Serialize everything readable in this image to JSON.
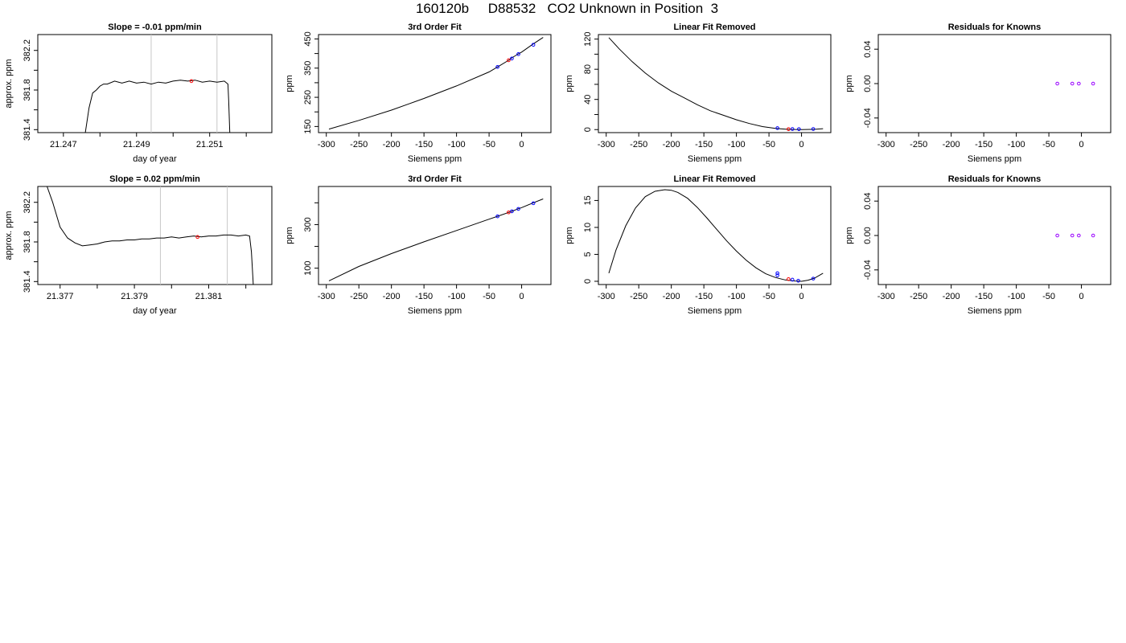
{
  "page_title": "160120b     D88532   CO2 Unknown in Position  3",
  "colors": {
    "axis": "#000000",
    "line": "#000000",
    "vline": "#c8c8c8",
    "known": "#0000ff",
    "unknown": "#ff0000",
    "residual": "#9900ff"
  },
  "chart_data": [
    {
      "type": "line",
      "title": "Slope =  -0.01  ppm/min",
      "xlabel": "day of year",
      "ylabel": "approx. ppm",
      "xlim": [
        21.2463,
        21.2527
      ],
      "ylim": [
        381.37,
        382.36
      ],
      "xticks": [
        21.247,
        21.248,
        21.249,
        21.25,
        21.251,
        21.252
      ],
      "xtick_labels": [
        "21.247",
        "",
        "21.249",
        "",
        "21.251",
        ""
      ],
      "yticks": [
        381.4,
        381.6,
        381.8,
        382.0,
        382.2
      ],
      "ytick_labels": [
        "381.4",
        "",
        "381.8",
        "",
        "382.2"
      ],
      "vlines": [
        21.2494,
        21.2512
      ],
      "series": [
        {
          "x": [
            21.2476,
            21.2477,
            21.2478,
            21.2479,
            21.248,
            21.2481,
            21.2482,
            21.2484,
            21.2486,
            21.2488,
            21.249,
            21.2492,
            21.2494,
            21.2496,
            21.2498,
            21.25,
            21.2502,
            21.2504,
            21.2506,
            21.2508,
            21.251,
            21.2512,
            21.2514,
            21.2515,
            21.25152,
            21.25155
          ],
          "y": [
            381.37,
            381.62,
            381.77,
            381.8,
            381.84,
            381.86,
            381.86,
            381.89,
            381.87,
            381.89,
            381.87,
            381.88,
            381.86,
            381.88,
            381.87,
            381.89,
            381.9,
            381.89,
            381.9,
            381.88,
            381.89,
            381.88,
            381.89,
            381.86,
            381.7,
            381.37
          ]
        }
      ],
      "points": [
        {
          "x": 21.2505,
          "y": 381.89
        }
      ]
    },
    {
      "type": "line",
      "title": "3rd Order Fit",
      "xlabel": "Siemens ppm",
      "ylabel": "ppm",
      "xlim": [
        -312,
        45
      ],
      "ylim": [
        129,
        465
      ],
      "xticks": [
        -300,
        -250,
        -200,
        -150,
        -100,
        -50,
        0
      ],
      "xtick_labels": [
        "-300",
        "-250",
        "-200",
        "-150",
        "-100",
        "-50",
        "0"
      ],
      "yticks": [
        150,
        200,
        250,
        300,
        350,
        400,
        450
      ],
      "ytick_labels": [
        "150",
        "",
        "250",
        "",
        "350",
        "",
        "450"
      ],
      "series": [
        {
          "x": [
            -296,
            -250,
            -200,
            -150,
            -100,
            -50,
            -37,
            -20,
            -15,
            -5,
            0,
            18,
            33
          ],
          "y": [
            141,
            171,
            206,
            246,
            289,
            337,
            354,
            377,
            385,
            399,
            405,
            433,
            455
          ]
        }
      ],
      "knowns": [
        {
          "x": -37,
          "y": 354
        },
        {
          "x": -15,
          "y": 383
        },
        {
          "x": -5,
          "y": 398
        },
        {
          "x": 18,
          "y": 430
        }
      ],
      "unknowns": [
        {
          "x": -20,
          "y": 377
        }
      ]
    },
    {
      "type": "line",
      "title": "Linear Fit Removed",
      "xlabel": "Siemens ppm",
      "ylabel": "ppm",
      "xlim": [
        -312,
        45
      ],
      "ylim": [
        -4,
        126
      ],
      "xticks": [
        -300,
        -250,
        -200,
        -150,
        -100,
        -50,
        0
      ],
      "xtick_labels": [
        "-300",
        "-250",
        "-200",
        "-150",
        "-100",
        "-50",
        "0"
      ],
      "yticks": [
        0,
        20,
        40,
        60,
        80,
        100,
        120
      ],
      "ytick_labels": [
        "0",
        "",
        "40",
        "",
        "80",
        "",
        "120"
      ],
      "series": [
        {
          "x": [
            -296,
            -280,
            -260,
            -240,
            -220,
            -200,
            -180,
            -160,
            -140,
            -120,
            -100,
            -80,
            -60,
            -40,
            -20,
            0,
            20,
            33
          ],
          "y": [
            122,
            107,
            90,
            75,
            62,
            51,
            42,
            33,
            25,
            19,
            13,
            8,
            4,
            1.5,
            0.3,
            0,
            0.4,
            1.2
          ]
        }
      ],
      "knowns": [
        {
          "x": -37,
          "y": 2
        },
        {
          "x": -14,
          "y": 0.8
        },
        {
          "x": -4,
          "y": 0.6
        },
        {
          "x": 18,
          "y": 0.8
        }
      ],
      "unknowns": [
        {
          "x": -20,
          "y": 0.6
        }
      ]
    },
    {
      "type": "scatter",
      "title": "Residuals for Knowns",
      "xlabel": "Siemens ppm",
      "ylabel": "ppm",
      "xlim": [
        -312,
        45
      ],
      "ylim": [
        -0.057,
        0.057
      ],
      "xticks": [
        -300,
        -250,
        -200,
        -150,
        -100,
        -50,
        0
      ],
      "xtick_labels": [
        "-300",
        "-250",
        "-200",
        "-150",
        "-100",
        "-50",
        "0"
      ],
      "yticks": [
        -0.04,
        0.0,
        0.04
      ],
      "ytick_labels": [
        "-0.04",
        "0.00",
        "0.04"
      ],
      "residuals": [
        {
          "x": -37,
          "y": 0
        },
        {
          "x": -14,
          "y": 0
        },
        {
          "x": -4,
          "y": 0
        },
        {
          "x": 18,
          "y": 0
        }
      ]
    },
    {
      "type": "line",
      "title": "Slope =  0.02  ppm/min",
      "xlabel": "day of year",
      "ylabel": "approx. ppm",
      "xlim": [
        21.3764,
        21.3827
      ],
      "ylim": [
        381.37,
        382.36
      ],
      "xticks": [
        21.377,
        21.378,
        21.379,
        21.38,
        21.381,
        21.382
      ],
      "xtick_labels": [
        "21.377",
        "",
        "21.379",
        "",
        "21.381",
        ""
      ],
      "yticks": [
        381.4,
        381.6,
        381.8,
        382.0,
        382.2
      ],
      "ytick_labels": [
        "381.4",
        "",
        "381.8",
        "",
        "382.2"
      ],
      "vlines": [
        21.3797,
        21.3815
      ],
      "series": [
        {
          "x": [
            21.37665,
            21.3768,
            21.377,
            21.3772,
            21.3774,
            21.3776,
            21.3778,
            21.378,
            21.3782,
            21.3784,
            21.3786,
            21.3788,
            21.379,
            21.3792,
            21.3794,
            21.3796,
            21.3798,
            21.38,
            21.3802,
            21.3804,
            21.3806,
            21.3808,
            21.381,
            21.3812,
            21.3814,
            21.3816,
            21.3818,
            21.382,
            21.3821,
            21.38215,
            21.3822
          ],
          "y": [
            382.36,
            382.2,
            381.95,
            381.84,
            381.79,
            381.76,
            381.77,
            381.78,
            381.8,
            381.81,
            381.81,
            381.82,
            381.82,
            381.83,
            381.83,
            381.84,
            381.84,
            381.85,
            381.84,
            381.85,
            381.86,
            381.85,
            381.86,
            381.86,
            381.87,
            381.87,
            381.86,
            381.87,
            381.86,
            381.7,
            381.37
          ]
        }
      ],
      "points": [
        {
          "x": 21.3807,
          "y": 381.85
        }
      ]
    },
    {
      "type": "line",
      "title": "3rd Order Fit",
      "xlabel": "Siemens ppm",
      "ylabel": "ppm",
      "xlim": [
        -312,
        45
      ],
      "ylim": [
        25,
        475
      ],
      "xticks": [
        -300,
        -250,
        -200,
        -150,
        -100,
        -50,
        0
      ],
      "xtick_labels": [
        "-300",
        "-250",
        "-200",
        "-150",
        "-100",
        "-50",
        "0"
      ],
      "yticks": [
        100,
        200,
        300,
        400
      ],
      "ytick_labels": [
        "100",
        "",
        "300",
        ""
      ],
      "series": [
        {
          "x": [
            -296,
            -250,
            -200,
            -150,
            -100,
            -50,
            -37,
            -20,
            -15,
            -5,
            0,
            18,
            33
          ],
          "y": [
            42,
            108,
            167,
            221,
            273,
            325,
            338,
            356,
            361,
            373,
            378,
            400,
            418
          ]
        }
      ],
      "knowns": [
        {
          "x": -37,
          "y": 338
        },
        {
          "x": -15,
          "y": 361
        },
        {
          "x": -5,
          "y": 372
        },
        {
          "x": 18,
          "y": 398
        }
      ],
      "unknowns": [
        {
          "x": -20,
          "y": 356
        }
      ]
    },
    {
      "type": "line",
      "title": "Linear Fit Removed",
      "xlabel": "Siemens ppm",
      "ylabel": "ppm",
      "xlim": [
        -312,
        45
      ],
      "ylim": [
        -0.6,
        17.6
      ],
      "xticks": [
        -300,
        -250,
        -200,
        -150,
        -100,
        -50,
        0
      ],
      "xtick_labels": [
        "-300",
        "-250",
        "-200",
        "-150",
        "-100",
        "-50",
        "0"
      ],
      "yticks": [
        0,
        5,
        10,
        15
      ],
      "ytick_labels": [
        "0",
        "5",
        "10",
        "15"
      ],
      "series": [
        {
          "x": [
            -296,
            -285,
            -270,
            -255,
            -240,
            -225,
            -210,
            -200,
            -190,
            -175,
            -160,
            -145,
            -130,
            -115,
            -100,
            -85,
            -70,
            -55,
            -40,
            -25,
            -10,
            0,
            10,
            20,
            33
          ],
          "y": [
            1.5,
            5.8,
            10.3,
            13.6,
            15.7,
            16.7,
            17.0,
            16.9,
            16.5,
            15.4,
            13.7,
            11.7,
            9.6,
            7.5,
            5.6,
            3.9,
            2.5,
            1.4,
            0.7,
            0.25,
            0.05,
            0.0,
            0.2,
            0.6,
            1.5
          ]
        }
      ],
      "knowns": [
        {
          "x": -37,
          "y": 1.5
        },
        {
          "x": -37,
          "y": 1.1
        },
        {
          "x": -14,
          "y": 0.3
        },
        {
          "x": -5,
          "y": 0.1
        },
        {
          "x": 18,
          "y": 0.5
        }
      ],
      "unknowns": [
        {
          "x": -20,
          "y": 0.4
        }
      ]
    },
    {
      "type": "scatter",
      "title": "Residuals for Knowns",
      "xlabel": "Siemens ppm",
      "ylabel": "ppm",
      "xlim": [
        -312,
        45
      ],
      "ylim": [
        -0.057,
        0.057
      ],
      "xticks": [
        -300,
        -250,
        -200,
        -150,
        -100,
        -50,
        0
      ],
      "xtick_labels": [
        "-300",
        "-250",
        "-200",
        "-150",
        "-100",
        "-50",
        "0"
      ],
      "yticks": [
        -0.04,
        0.0,
        0.04
      ],
      "ytick_labels": [
        "-0.04",
        "0.00",
        "0.04"
      ],
      "residuals": [
        {
          "x": -37,
          "y": 0
        },
        {
          "x": -14,
          "y": 0
        },
        {
          "x": -4,
          "y": 0
        },
        {
          "x": 18,
          "y": 0
        }
      ]
    }
  ]
}
